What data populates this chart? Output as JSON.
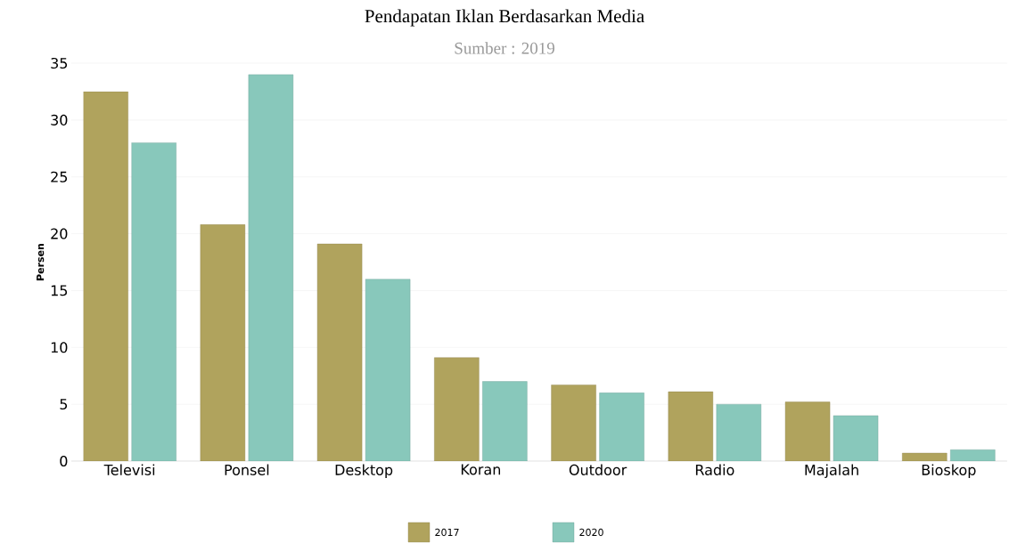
{
  "chart_data": {
    "type": "bar",
    "title": "Pendapatan Iklan Berdasarkan Media",
    "subtitle": "Sumber : 2019",
    "ylabel": "Persen",
    "categories": [
      "Televisi",
      "Ponsel",
      "Desktop",
      "Koran",
      "Outdoor",
      "Radio",
      "Majalah",
      "Bioskop"
    ],
    "series": [
      {
        "name": "2017",
        "color": "#b0a35d",
        "values": [
          32.5,
          20.8,
          19.1,
          9.1,
          6.7,
          6.1,
          5.2,
          0.7
        ]
      },
      {
        "name": "2020",
        "color": "#88c8bb",
        "values": [
          28.0,
          34.0,
          16.0,
          7.0,
          6.0,
          5.0,
          4.0,
          1.0
        ]
      }
    ],
    "ylim": [
      0,
      35
    ],
    "yticks": [
      0,
      5,
      10,
      15,
      20,
      25,
      30,
      35
    ],
    "grid": "y",
    "legend": "bottom"
  }
}
